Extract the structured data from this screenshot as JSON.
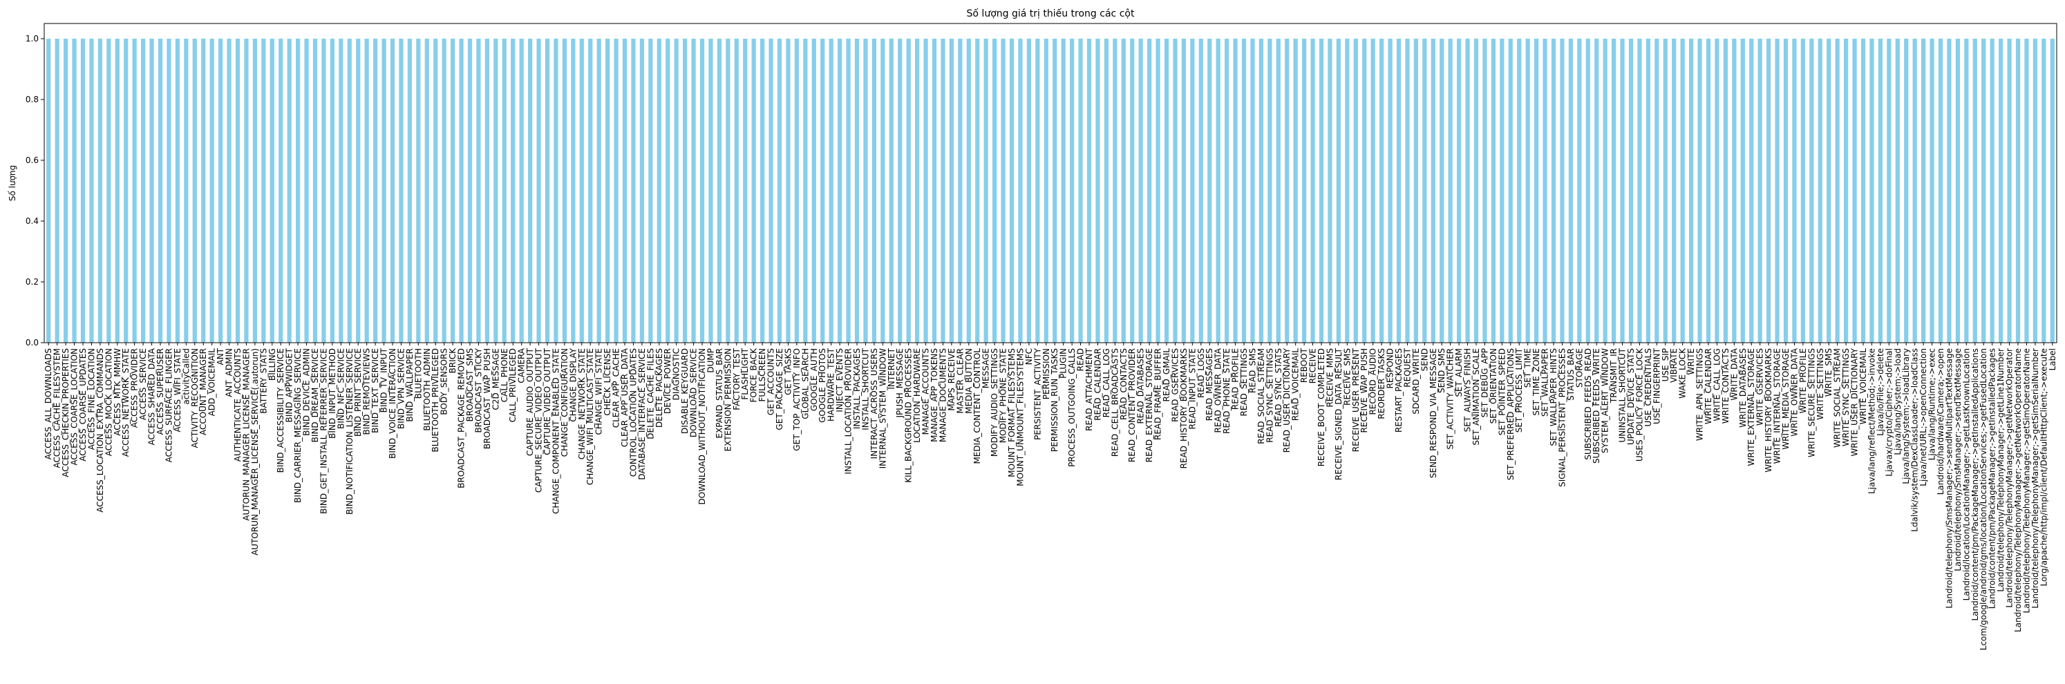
{
  "chart_data": {
    "type": "bar",
    "title": "Số lượng giá trị thiếu trong các cột",
    "xlabel": "",
    "ylabel": "Số lượng",
    "ylim": [
      0,
      1.05
    ],
    "yticks": [
      "0.0",
      "0.2",
      "0.4",
      "0.6",
      "0.8",
      "1.0"
    ],
    "ytick_values": [
      0.0,
      0.2,
      0.4,
      0.6,
      0.8,
      1.0
    ],
    "grid": false,
    "legend": "none",
    "bar_color": "#87ceeb",
    "categories": [
      "ACCESS_ALL_DOWNLOADS",
      "ACCESS_CACHE_FILESYSTEM",
      "ACCESS_CHECKIN_PROPERTIES",
      "ACCESS_COARSE_LOCATION",
      "ACCESS_COARSE_UPDATES",
      "ACCESS_FINE_LOCATION",
      "ACCESS_LOCATION_EXTRA_COMMANDS",
      "ACCESS_MOCK_LOCATION",
      "ACCESS_MTK_MMHW",
      "ACCESS_NETWORK_STATE",
      "ACCESS_PROVIDER",
      "ACCESS_SERVICE",
      "ACCESS_SHARED_DATA",
      "ACCESS_SUPERUSER",
      "ACCESS_SURFACE_FLINGER",
      "ACCESS_WIFI_STATE",
      "activityCalled",
      "ACTIVITY_RECOGNITION",
      "ACCOUNT_MANAGER",
      "ADD_VOICEMAIL",
      "ANT",
      "ANT_ADMIN",
      "AUTHENTICATE_ACCOUNTS",
      "AUTORUN_MANAGER_LICENSE_MANAGER",
      "AUTORUN_MANAGER_LICENSE_SERVICE(.autorun)",
      "BATTERY_STATS",
      "BILLING",
      "BIND_ACCESSIBILITY_SERVICE",
      "BIND_APPWIDGET",
      "BIND_CARRIER_MESSAGING_SERVICE",
      "BIND_DEVICE_ADMIN",
      "BIND_DREAM_SERVICE",
      "BIND_GET_INSTALL_REFERRER_SERVICE",
      "BIND_INPUT_METHOD",
      "BIND_NFC_SERVICE",
      "BIND_NOTIFICATION_LISTENER_SERVICE",
      "BIND_PRINT_SERVICE",
      "BIND_REMOTEVIEWS",
      "BIND_TEXT_SERVICE",
      "BIND_TV_INPUT",
      "BIND_VOICE_INTERACTION",
      "BIND_VPN_SERVICE",
      "BIND_WALLPAPER",
      "BLUETOOTH",
      "BLUETOOTH_ADMIN",
      "BLUETOOTH_PRIVILEGED",
      "BODY_SENSORS",
      "BRICK",
      "BROADCAST_PACKAGE_REMOVED",
      "BROADCAST_SMS",
      "BROADCAST_STICKY",
      "BROADCAST_WAP_PUSH",
      "C2D_MESSAGE",
      "CALL_PHONE",
      "CALL_PRIVILEGED",
      "CAMERA",
      "CAPTURE_AUDIO_OUTPUT",
      "CAPTURE_SECURE_VIDEO_OUTPUT",
      "CAPTURE_VIDEO_OUTPUT",
      "CHANGE_COMPONENT_ENABLED_STATE",
      "CHANGE_CONFIGURATION",
      "CHANGE_DISPLAY",
      "CHANGE_NETWORK_STATE",
      "CHANGE_WIFI_MULTICAST_STATE",
      "CHANGE_WIFI_STATE",
      "CHECK_LICENSE",
      "CLEAR_APP_CACHE",
      "CLEAR_APP_USER_DATA",
      "CONTROL_LOCATION_UPDATES",
      "DATABASE_INTERFACE_SERVICE",
      "DELETE_CACHE_FILES",
      "DELETE_PACKAGES",
      "DEVICE_POWER",
      "DIAGNOSTIC",
      "DISABLE_KEYGUARD",
      "DOWNLOAD_SERVICE",
      "DOWNLOAD_WITHOUT_NOTIFICATION",
      "DUMP",
      "EXPAND_STATUS_BAR",
      "EXTENSION_PERMISSION",
      "FACTORY_TEST",
      "FLASHLIGHT",
      "FORCE_BACK",
      "FULLSCREEN",
      "GET_ACCOUNTS",
      "GET_PACKAGE_SIZE",
      "GET_TASKS",
      "GET_TOP_ACTIVITY_INFO",
      "GLOBAL_SEARCH",
      "GOOGLE_AUTH",
      "GOOGLE_PHOTOS",
      "HARDWARE_TEST",
      "INJECT_EVENTS",
      "INSTALL_LOCATION_PROVIDER",
      "INSTALL_PACKAGES",
      "INSTALL_SHORTCUT",
      "INTERACT_ACROSS_USERS",
      "INTERNAL_SYSTEM_WINDOW",
      "INTERNET",
      "JPUSH_MESSAGE",
      "KILL_BACKGROUND_PROCESSES",
      "LOCATION_HARDWARE",
      "MANAGE_ACCOUNTS",
      "MANAGE_APP_TOKENS",
      "MANAGE_DOCUMENTS",
      "MAPS_RECEIVE",
      "MASTER_CLEAR",
      "MEDIA_BUTTON",
      "MEDIA_CONTENT_CONTROL",
      "MESSAGE",
      "MODIFY_AUDIO_SETTINGS",
      "MODIFY_PHONE_STATE",
      "MOUNT_FORMAT_FILESYSTEMS",
      "MOUNT_UNMOUNT_FILESYSTEMS",
      "NFC",
      "PERSISTENT_ACTIVITY",
      "PERMISSION",
      "PERMISSION_RUN_TASKS",
      "PLUGIN",
      "PROCESS_OUTGOING_CALLS",
      "READ",
      "READ_ATTACHMENT",
      "READ_CALENDAR",
      "READ_CALL_LOG",
      "READ_CELL_BROADCASTS",
      "READ_CONTACTS",
      "READ_CONTENT_PROVIDER",
      "READ_DATABASES",
      "READ_EXTERNAL_STORAGE",
      "READ_FRAME_BUFFER",
      "READ_GMAIL",
      "READ_GSERVICES",
      "READ_HISTORY_BOOKMARKS",
      "READ_INPUT_STATE",
      "READ_LOGS",
      "READ_MESSAGES",
      "READ_OWNER_DATA",
      "READ_PHONE_STATE",
      "READ_PROFILE",
      "READ_SETTINGS",
      "READ_SMS",
      "READ_SOCIAL_STREAM",
      "READ_SYNC_SETTINGS",
      "READ_SYNC_STATS",
      "READ_USER_DICTIONARY",
      "READ_VOICEMAIL",
      "REBOOT",
      "RECEIVE",
      "RECEIVE_BOOT_COMPLETED",
      "RECEIVE_MMS",
      "RECEIVE_SIGNED_DATA_RESULT",
      "RECEIVE_SMS",
      "RECEIVE_USER_PRESENT",
      "RECEIVE_WAP_PUSH",
      "RECORD_AUDIO",
      "REORDER_TASKS",
      "RESPOND",
      "RESTART_PACKAGES",
      "REQUEST",
      "SDCARD_WRITE",
      "SEND",
      "SEND_RESPOND_VIA_MESSAGE",
      "SEND_SMS",
      "SET_ACTIVITY_WATCHER",
      "SET_ALARM",
      "SET_ALWAYS_FINISH",
      "SET_ANIMATION_SCALE",
      "SET_DEBUG_APP",
      "SET_ORIENTATION",
      "SET_POINTER_SPEED",
      "SET_PREFERRED_APPLICATIONS",
      "SET_PROCESS_LIMIT",
      "SET_TIME",
      "SET_TIME_ZONE",
      "SET_WALLPAPER",
      "SET_WALLPAPER_HINTS",
      "SIGNAL_PERSISTENT_PROCESSES",
      "STATUS_BAR",
      "STORAGE",
      "SUBSCRIBED_FEEDS_READ",
      "SUBSCRIBED_FEEDS_WRITE",
      "SYSTEM_ALERT_WINDOW",
      "TRANSMIT_IR",
      "UNINSTALL_SHORTCUT",
      "UPDATE_DEVICE_STATS",
      "USES_POLICY_FORCE_LOCK",
      "USE_CREDENTIALS",
      "USE_FINGERPRINT",
      "USE_SIP",
      "VIBRATE",
      "WAKE_LOCK",
      "WRITE",
      "WRITE_APN_SETTINGS",
      "WRITE_CALENDAR",
      "WRITE_CALL_LOG",
      "WRITE_CONTACTS",
      "WRITE_DATA",
      "WRITE_DATABASES",
      "WRITE_EXTERNAL_STORAGE",
      "WRITE_GSERVICES",
      "WRITE_HISTORY_BOOKMARKS",
      "WRITE_INTERNAL_STORAGE",
      "WRITE_MEDIA_STORAGE",
      "WRITE_OWNER_DATA",
      "WRITE_PROFILE",
      "WRITE_SECURE_SETTINGS",
      "WRITE_SETTINGS",
      "WRITE_SMS",
      "WRITE_SOCIAL_STREAM",
      "WRITE_SYNC_SETTINGS",
      "WRITE_USER_DICTIONARY",
      "WRITE_VOICEMAIL",
      "Ljava/lang/reflect/Method;->invoke",
      "Ljava/io/File;->delete",
      "Ljavax/crypto/Cipher;->doFinal",
      "Ljava/lang/System;->load",
      "Ljava/lang/System;->loadLibrary",
      "Ldalvik/system/DexClassLoader;->loadClass",
      "Ljava/net/URL;->openConnection",
      "Ljava/lang/Runtime;->exec",
      "Landroid/hardware/Camera;->open",
      "Landroid/telephony/SmsManager;->sendMultipartTextMessage",
      "Landroid/telephony/SmsManager;->sendTextMessage",
      "Landroid/location/LocationManager;->getLastKnownLocation",
      "Landroid/content/pm/PackageManager;->getInstalledApplications",
      "Lcom/google/android/gms/location/LocationServices;->getFusedLocation",
      "Landroid/content/pm/PackageManager;->getInstalledPackages",
      "Landroid/telephony/TelephonyManager;->getLine1Number",
      "Landroid/telephony/TelephonyManager;->getNetworkOperator",
      "Landroid/telephony/TelephonyManager;->getNetworkOperatorName",
      "Landroid/telephony/TelephonyManager;->getSimOperatorName",
      "Landroid/telephony/TelephonyManager;->getSimSerialNumber",
      "Lorg/apache/http/impl/client/DefaultHttpClient;->execute",
      "Label"
    ],
    "values_all": 1.0
  }
}
